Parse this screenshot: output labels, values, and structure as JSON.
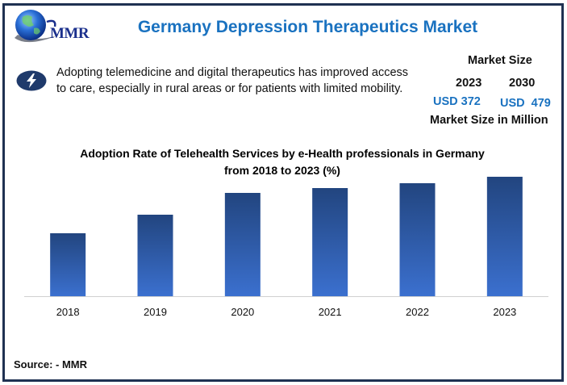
{
  "header": {
    "logo_text": "MMR",
    "title": "Germany Depression Therapeutics Market"
  },
  "highlight": {
    "icon": "lightning-bolt-icon",
    "text_line1": "Adopting telemedicine and digital therapeutics has improved access",
    "text_line2": "to care, especially in rural areas or for patients with limited mobility."
  },
  "market_size": {
    "heading": "Market Size",
    "year_start": "2023",
    "year_end": "2030",
    "value_start": "USD 372",
    "value_end": "USD  479",
    "unit_note": "Market Size in Million"
  },
  "colors": {
    "title_blue": "#1a72c0",
    "frame_navy": "#1f3152",
    "bar_top": "#22457f",
    "bar_bottom": "#3b70cf"
  },
  "source": "Source: - MMR",
  "chart_data": {
    "type": "bar",
    "title_line1": "Adoption Rate of Telehealth Services by e-Health professionals in Germany",
    "title_line2": "from 2018 to 2023 (%)",
    "categories": [
      "2018",
      "2019",
      "2020",
      "2021",
      "2022",
      "2023"
    ],
    "values": [
      39,
      50.5,
      64,
      67,
      70,
      74
    ],
    "xlabel": "",
    "ylabel": "",
    "ylim": [
      0,
      100
    ],
    "grid": false,
    "legend": "none",
    "note": "No y-axis tick labels shown; values are relative estimates from bar heights"
  }
}
